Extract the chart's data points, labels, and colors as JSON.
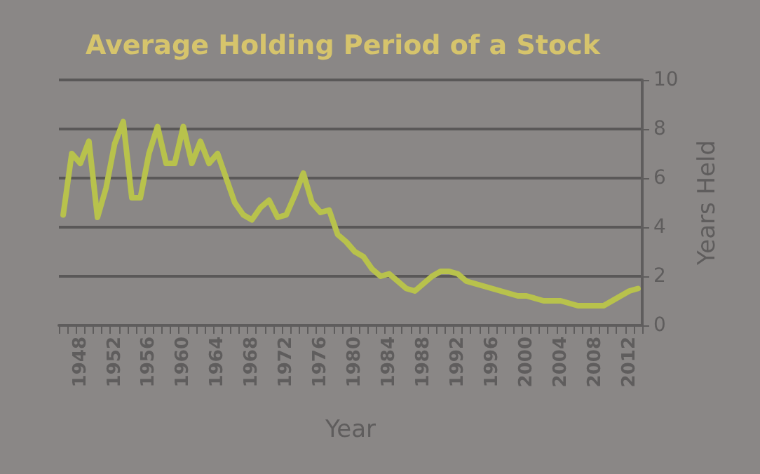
{
  "chart_data": {
    "type": "line",
    "title": "Average Holding Period of a Stock",
    "xlabel": "Year",
    "ylabel": "Years Held",
    "categories": [
      null,
      null,
      "1948",
      null,
      null,
      null,
      "1952",
      null,
      null,
      null,
      "1956",
      null,
      null,
      null,
      "1960",
      null,
      null,
      null,
      "1964",
      null,
      null,
      null,
      "1968",
      null,
      null,
      null,
      "1972",
      null,
      null,
      null,
      "1976",
      null,
      null,
      null,
      "1980",
      null,
      null,
      null,
      "1984",
      null,
      null,
      null,
      "1988",
      null,
      null,
      null,
      "1992",
      null,
      null,
      null,
      "1996",
      null,
      null,
      null,
      "2000",
      null,
      null,
      null,
      "2004",
      null,
      null,
      null,
      "2008",
      null,
      null,
      null,
      "2012",
      null
    ],
    "series": [
      {
        "color": "#b8c24c",
        "values": [
          4.5,
          7.0,
          6.6,
          7.5,
          4.4,
          5.6,
          7.4,
          8.3,
          5.2,
          5.2,
          7.0,
          8.1,
          6.6,
          6.6,
          8.1,
          6.6,
          7.5,
          6.6,
          7.0,
          6.0,
          5.0,
          4.5,
          4.3,
          4.8,
          5.1,
          4.4,
          4.5,
          5.3,
          6.2,
          5.0,
          4.6,
          4.7,
          3.7,
          3.4,
          3.0,
          2.8,
          2.3,
          2.0,
          2.1,
          1.8,
          1.5,
          1.4,
          1.7,
          2.0,
          2.2,
          2.2,
          2.1,
          1.8,
          1.7,
          1.6,
          1.5,
          1.4,
          1.3,
          1.2,
          1.2,
          1.1,
          1.0,
          1.0,
          1.0,
          0.9,
          0.8,
          0.8,
          0.8,
          0.8,
          1.0,
          1.2,
          1.4,
          1.5
        ]
      }
    ],
    "ylim": [
      0,
      10
    ],
    "yticks": [
      0,
      2,
      4,
      6,
      8,
      10
    ],
    "grid": "y",
    "marker": "none",
    "line_style": "solid"
  }
}
